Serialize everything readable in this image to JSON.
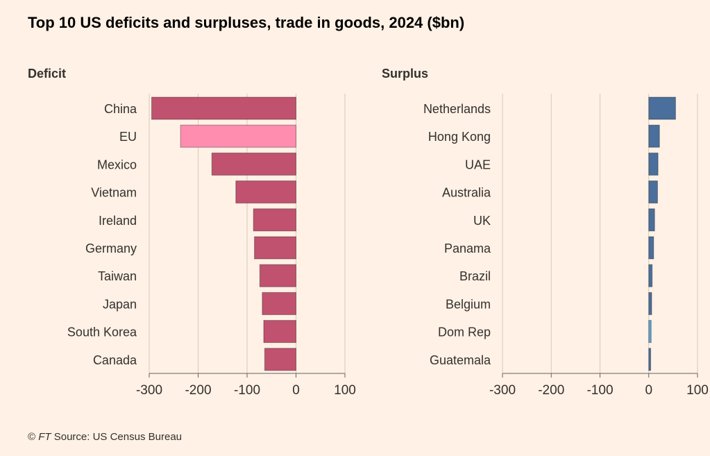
{
  "title": "Top 10 US deficits and surpluses, trade in goods, 2024 ($bn)",
  "footer": {
    "copyright": "©",
    "brand": "FT",
    "source": "Source: US Census Bureau"
  },
  "colors": {
    "deficit": "#c0526f",
    "deficit_highlight": "#ff8db0",
    "surplus": "#4a6f9c",
    "surplus_highlight": "#5fa3d0",
    "gridline": "#d9c8b8",
    "background": "#fff1e5"
  },
  "chart_data": [
    {
      "type": "bar",
      "orientation": "horizontal",
      "title": "Deficit",
      "categories": [
        "China",
        "EU",
        "Mexico",
        "Vietnam",
        "Ireland",
        "Germany",
        "Taiwan",
        "Japan",
        "South Korea",
        "Canada"
      ],
      "values": [
        -295,
        -236,
        -172,
        -123,
        -87,
        -85,
        -74,
        -69,
        -66,
        -64
      ],
      "highlight": [
        "EU"
      ],
      "xlim": [
        -300,
        100
      ],
      "xticks": [
        -300,
        -200,
        -100,
        0,
        100
      ],
      "grid": true
    },
    {
      "type": "bar",
      "orientation": "horizontal",
      "title": "Surplus",
      "categories": [
        "Netherlands",
        "Hong Kong",
        "UAE",
        "Australia",
        "UK",
        "Panama",
        "Brazil",
        "Belgium",
        "Dom Rep",
        "Guatemala"
      ],
      "values": [
        55,
        22,
        19,
        18,
        12,
        10,
        7,
        6,
        5,
        4
      ],
      "highlight": [
        "Dom Rep"
      ],
      "xlim": [
        -300,
        100
      ],
      "xticks": [
        -300,
        -200,
        -100,
        0,
        100
      ],
      "grid": true
    }
  ]
}
